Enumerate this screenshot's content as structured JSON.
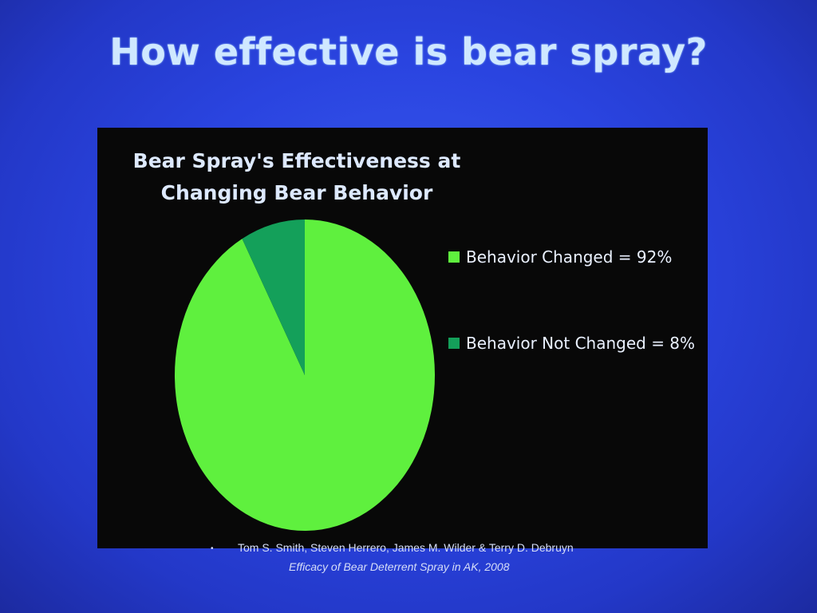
{
  "slide": {
    "title": "How effective is bear spray?"
  },
  "chart_data": {
    "type": "pie",
    "title_lines": [
      "Bear Spray's Effectiveness at",
      "Changing Bear Behavior"
    ],
    "categories": [
      "Behavior Changed",
      "Behavior Not Changed"
    ],
    "values": [
      92,
      8
    ],
    "unit": "%",
    "colors": [
      "#5ff03e",
      "#14a05a"
    ],
    "legend_labels": [
      "Behavior Changed = 92%",
      "Behavior Not Changed = 8%"
    ],
    "legend_position": "right",
    "background": "#080808"
  },
  "citation": {
    "bullet": "•",
    "authors": "Tom S. Smith, Steven Herrero, James M. Wilder & Terry D. Debruyn",
    "source": "Efficacy of Bear Deterrent Spray in AK, 2008"
  }
}
